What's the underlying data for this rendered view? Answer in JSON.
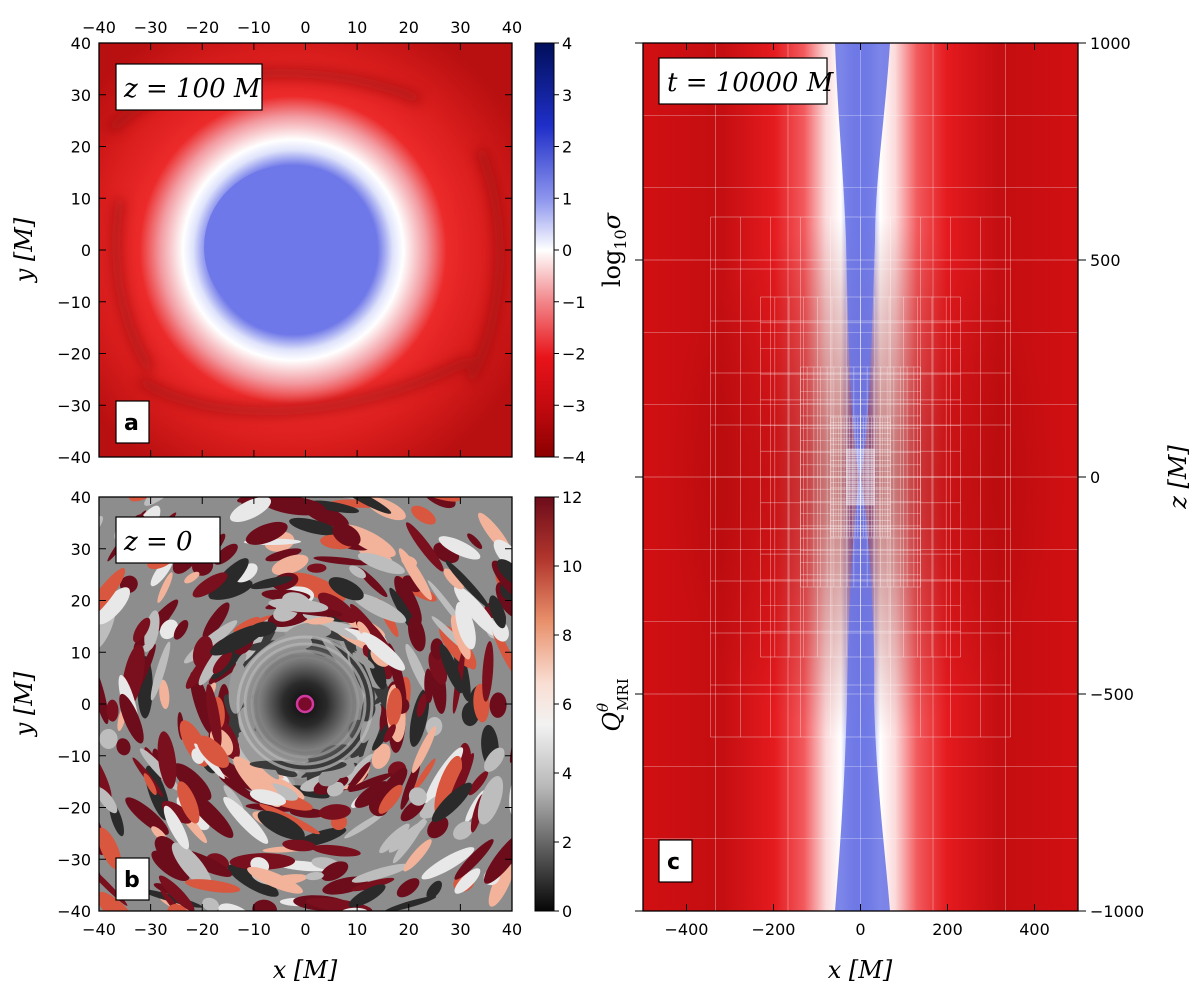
{
  "chart_data": [
    {
      "id": "a",
      "type": "heatmap",
      "panel_label": "a",
      "annotation": "z = 100 M",
      "ylabel": "y [M]",
      "xlim": [
        -40,
        40
      ],
      "ylim": [
        -40,
        40
      ],
      "x_ticks": [
        -40,
        -30,
        -20,
        -10,
        0,
        10,
        20,
        30,
        40
      ],
      "y_ticks": [
        -40,
        -30,
        -20,
        -10,
        0,
        10,
        20,
        30,
        40
      ],
      "x_tick_position": "top",
      "colorbar": {
        "label": "log10 σ",
        "range": [
          -4,
          4
        ],
        "ticks": [
          -4,
          -3,
          -2,
          -1,
          0,
          1,
          2,
          3,
          4
        ],
        "colormap": "seismic-red-blue"
      }
    },
    {
      "id": "b",
      "type": "heatmap",
      "panel_label": "b",
      "annotation": "z = 0",
      "xlabel": "x [M]",
      "ylabel": "y [M]",
      "xlim": [
        -40,
        40
      ],
      "ylim": [
        -40,
        40
      ],
      "x_ticks": [
        -40,
        -30,
        -20,
        -10,
        0,
        10,
        20,
        30,
        40
      ],
      "y_ticks": [
        -40,
        -30,
        -20,
        -10,
        0,
        10,
        20,
        30,
        40
      ],
      "colorbar": {
        "label": "Q θ MRI",
        "range": [
          0,
          12
        ],
        "ticks": [
          0,
          2,
          4,
          6,
          8,
          10,
          12
        ],
        "colormap": "gray-to-red"
      }
    },
    {
      "id": "c",
      "type": "heatmap",
      "panel_label": "c",
      "annotation": "t = 10000 M",
      "xlabel": "x [M]",
      "ylabel": "z [M]",
      "xlim": [
        -500,
        500
      ],
      "ylim": [
        -1000,
        1000
      ],
      "x_ticks": [
        -400,
        -200,
        0,
        200,
        400
      ],
      "y_ticks": [
        -1000,
        -500,
        0,
        500,
        1000
      ],
      "y_tick_position": "right"
    }
  ],
  "colors": {
    "deep_red": "#8b0000",
    "red": "#e8141a",
    "white": "#ffffff",
    "blue": "#6e78e6",
    "navy": "#001464",
    "horizon": "#c0307a"
  }
}
